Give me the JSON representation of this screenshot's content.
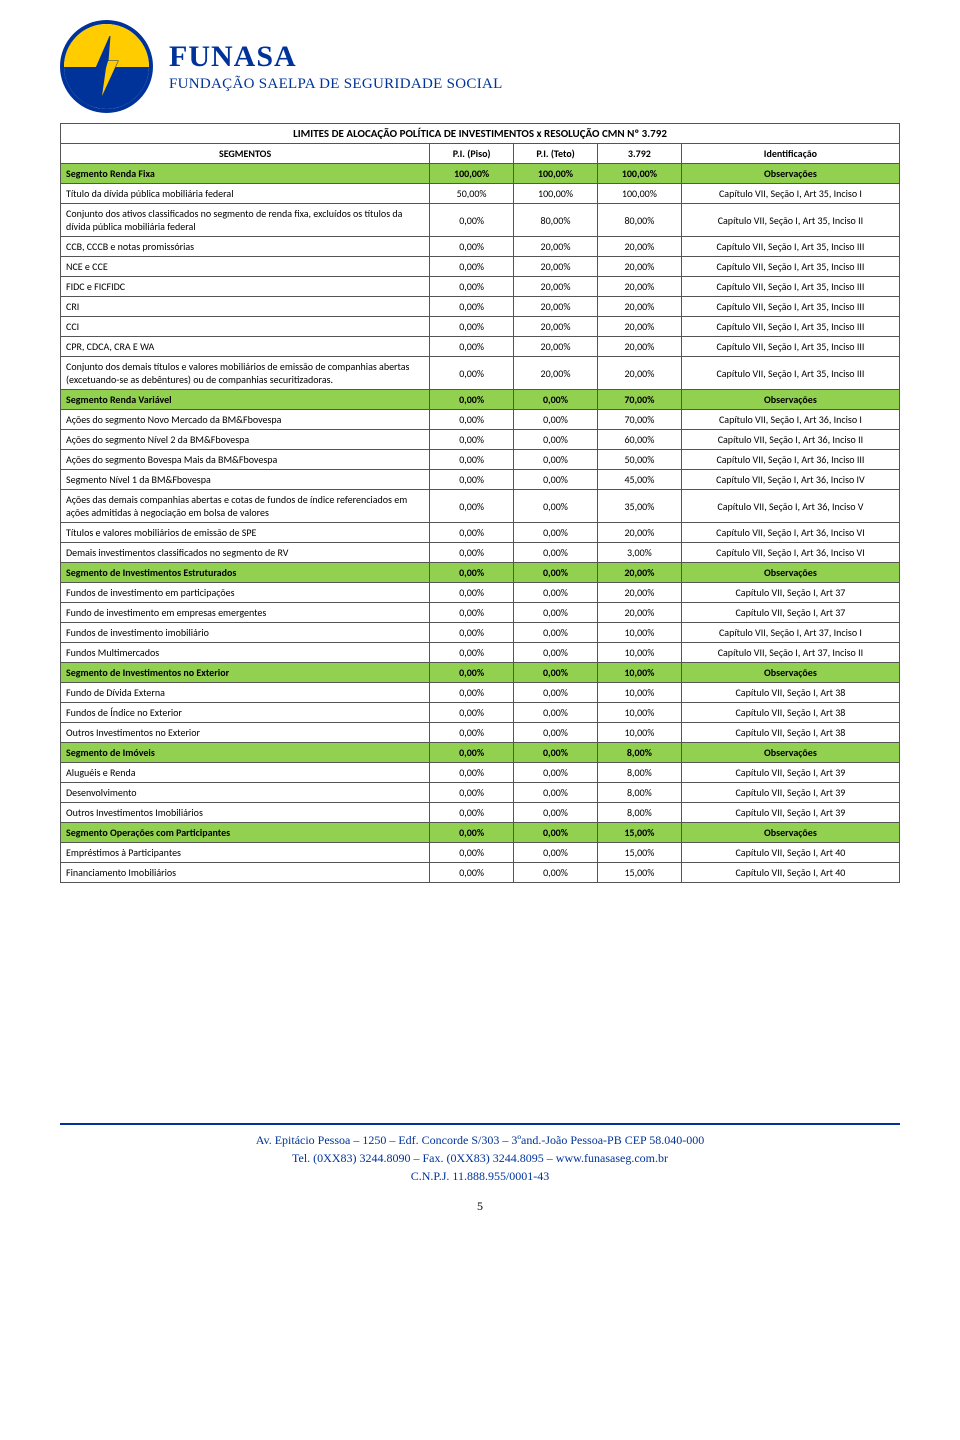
{
  "header": {
    "name": "FUNASA",
    "sub": "FUNDAÇÃO SAELPA DE SEGURIDADE SOCIAL"
  },
  "table": {
    "title": "LIMITES DE ALOCAÇÃO POLÍTICA DE INVESTIMENTOS x RESOLUÇÃO CMN Nº 3.792",
    "cols": {
      "seg": "SEGMENTOS",
      "piso": "P.I. (Piso)",
      "teto": "P.I. (Teto)",
      "ident": "3.792",
      "ident_label": "Identificação"
    },
    "sections": [
      {
        "seg_label": "Segmento Renda Fixa",
        "piso": "100,00%",
        "teto": "100,00%",
        "lim": "100,00%",
        "obs": "Observações",
        "rows": [
          {
            "label": "Título da dívida pública mobiliária federal",
            "piso": "50,00%",
            "teto": "100,00%",
            "lim": "100,00%",
            "obs": "Capítulo VII, Seção I, Art 35, Inciso I"
          },
          {
            "label": "Conjunto dos ativos classificados no segmento de renda fixa, excluídos os títulos da dívida pública mobiliária federal",
            "piso": "0,00%",
            "teto": "80,00%",
            "lim": "80,00%",
            "obs": "Capítulo VII, Seção I, Art 35, Inciso II"
          },
          {
            "label": "CCB, CCCB e notas promissórias",
            "piso": "0,00%",
            "teto": "20,00%",
            "lim": "20,00%",
            "obs": "Capítulo VII, Seção I, Art 35, Inciso III"
          },
          {
            "label": "NCE e CCE",
            "piso": "0,00%",
            "teto": "20,00%",
            "lim": "20,00%",
            "obs": "Capítulo VII, Seção I, Art 35, Inciso III"
          },
          {
            "label": "FIDC e FICFIDC",
            "piso": "0,00%",
            "teto": "20,00%",
            "lim": "20,00%",
            "obs": "Capítulo VII, Seção I, Art 35, Inciso III"
          },
          {
            "label": "CRI",
            "piso": "0,00%",
            "teto": "20,00%",
            "lim": "20,00%",
            "obs": "Capítulo VII, Seção I, Art 35, Inciso III"
          },
          {
            "label": "CCI",
            "piso": "0,00%",
            "teto": "20,00%",
            "lim": "20,00%",
            "obs": "Capítulo VII, Seção I, Art 35, Inciso III"
          },
          {
            "label": "CPR, CDCA, CRA E WA",
            "piso": "0,00%",
            "teto": "20,00%",
            "lim": "20,00%",
            "obs": "Capítulo VII, Seção I, Art 35, Inciso III"
          },
          {
            "label": "Conjunto dos demais títulos e valores mobiliários de emissão de companhias abertas (excetuando-se as debêntures) ou de companhias securitizadoras.",
            "piso": "0,00%",
            "teto": "20,00%",
            "lim": "20,00%",
            "obs": "Capítulo VII, Seção I, Art 35, Inciso III"
          }
        ]
      },
      {
        "seg_label": "Segmento Renda Variável",
        "piso": "0,00%",
        "teto": "0,00%",
        "lim": "70,00%",
        "obs": "Observações",
        "rows": [
          {
            "label": "Ações do segmento Novo Mercado da BM&Fbovespa",
            "piso": "0,00%",
            "teto": "0,00%",
            "lim": "70,00%",
            "obs": "Capítulo VII, Seção I, Art 36, Inciso I"
          },
          {
            "label": "Ações do segmento Nível 2 da BM&Fbovespa",
            "piso": "0,00%",
            "teto": "0,00%",
            "lim": "60,00%",
            "obs": "Capítulo VII, Seção I, Art 36, Inciso II"
          },
          {
            "label": "Ações do segmento Bovespa Mais da BM&Fbovespa",
            "piso": "0,00%",
            "teto": "0,00%",
            "lim": "50,00%",
            "obs": "Capítulo VII, Seção I, Art 36, Inciso III"
          },
          {
            "label": "Segmento Nível 1 da BM&Fbovespa",
            "piso": "0,00%",
            "teto": "0,00%",
            "lim": "45,00%",
            "obs": "Capítulo VII, Seção I, Art 36, Inciso IV"
          },
          {
            "label": "Ações das demais companhias abertas e cotas de fundos de índice referenciados em ações admitidas à negociação em bolsa de valores",
            "piso": "0,00%",
            "teto": "0,00%",
            "lim": "35,00%",
            "obs": "Capítulo VII, Seção I, Art 36, Inciso V"
          },
          {
            "label": "Títulos e valores mobiliários de emissão de SPE",
            "piso": "0,00%",
            "teto": "0,00%",
            "lim": "20,00%",
            "obs": "Capítulo VII, Seção I, Art 36, Inciso VI"
          },
          {
            "label": "Demais investimentos classificados no segmento de RV",
            "piso": "0,00%",
            "teto": "0,00%",
            "lim": "3,00%",
            "obs": "Capítulo VII, Seção I, Art 36, Inciso VI"
          }
        ]
      },
      {
        "seg_label": "Segmento de Investimentos Estruturados",
        "piso": "0,00%",
        "teto": "0,00%",
        "lim": "20,00%",
        "obs": "Observações",
        "rows": [
          {
            "label": "Fundos de investimento em participações",
            "piso": "0,00%",
            "teto": "0,00%",
            "lim": "20,00%",
            "obs": "Capítulo VII, Seção I, Art 37"
          },
          {
            "label": "Fundo de investimento em empresas emergentes",
            "piso": "0,00%",
            "teto": "0,00%",
            "lim": "20,00%",
            "obs": "Capítulo VII, Seção I, Art 37"
          },
          {
            "label": "Fundos de investimento imobiliário",
            "piso": "0,00%",
            "teto": "0,00%",
            "lim": "10,00%",
            "obs": "Capítulo VII, Seção I, Art 37, Inciso I"
          },
          {
            "label": "Fundos Multimercados",
            "piso": "0,00%",
            "teto": "0,00%",
            "lim": "10,00%",
            "obs": "Capítulo VII, Seção I, Art 37, Inciso II"
          }
        ]
      },
      {
        "seg_label": "Segmento de Investimentos no Exterior",
        "piso": "0,00%",
        "teto": "0,00%",
        "lim": "10,00%",
        "obs": "Observações",
        "rows": [
          {
            "label": "Fundo de Dívida Externa",
            "piso": "0,00%",
            "teto": "0,00%",
            "lim": "10,00%",
            "obs": "Capítulo VII, Seção I, Art 38"
          },
          {
            "label": "Fundos de Índice no Exterior",
            "piso": "0,00%",
            "teto": "0,00%",
            "lim": "10,00%",
            "obs": "Capítulo VII, Seção I, Art 38"
          },
          {
            "label": "Outros Investimentos no Exterior",
            "piso": "0,00%",
            "teto": "0,00%",
            "lim": "10,00%",
            "obs": "Capítulo VII, Seção I, Art 38"
          }
        ]
      },
      {
        "seg_label": "Segmento de Imóveis",
        "piso": "0,00%",
        "teto": "0,00%",
        "lim": "8,00%",
        "obs": "Observações",
        "rows": [
          {
            "label": "Aluguéis e Renda",
            "piso": "0,00%",
            "teto": "0,00%",
            "lim": "8,00%",
            "obs": "Capítulo VII, Seção I, Art 39"
          },
          {
            "label": "Desenvolvimento",
            "piso": "0,00%",
            "teto": "0,00%",
            "lim": "8,00%",
            "obs": "Capítulo VII, Seção I, Art 39"
          },
          {
            "label": "Outros Investimentos Imobiliários",
            "piso": "0,00%",
            "teto": "0,00%",
            "lim": "8,00%",
            "obs": "Capítulo VII, Seção I, Art 39"
          }
        ]
      },
      {
        "seg_label": "Segmento Operações com Participantes",
        "piso": "0,00%",
        "teto": "0,00%",
        "lim": "15,00%",
        "obs": "Observações",
        "rows": [
          {
            "label": "Empréstimos à Participantes",
            "piso": "0,00%",
            "teto": "0,00%",
            "lim": "15,00%",
            "obs": "Capítulo VII, Seção I, Art 40"
          },
          {
            "label": "Financiamento Imobiliários",
            "piso": "0,00%",
            "teto": "0,00%",
            "lim": "15,00%",
            "obs": "Capítulo VII, Seção I, Art 40"
          }
        ]
      }
    ]
  },
  "footer": {
    "line1": "Av. Epitácio Pessoa – 1250 – Edf. Concorde S/303 – 3ºand.-João Pessoa-PB CEP 58.040-000",
    "line2": "Tel. (0XX83) 3244.8090 – Fax. (0XX83) 3244.8095 – www.funasaseg.com.br",
    "line3": "C.N.P.J. 11.888.955/0001-43",
    "page": "5"
  },
  "style": {
    "green": "#92d050",
    "blue": "#003399",
    "yellow": "#ffcc00",
    "border": "#555555"
  }
}
